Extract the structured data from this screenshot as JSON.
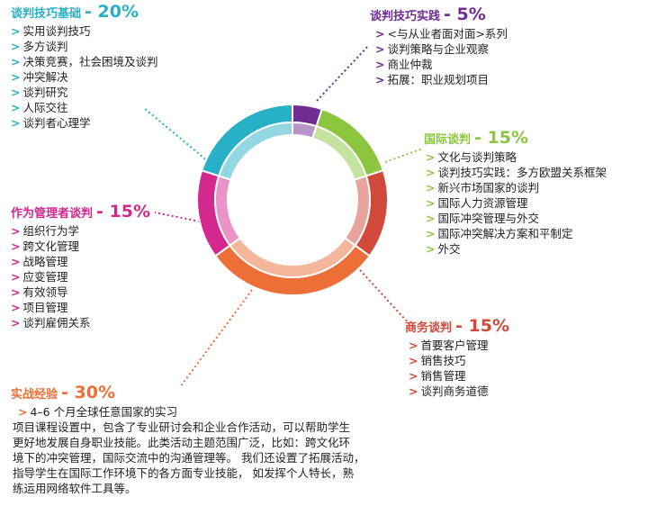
{
  "colors": {
    "purple": "#6f2c91",
    "green": "#8cc63f",
    "red": "#d1493a",
    "orange": "#ec6f37",
    "magenta": "#d3288d",
    "cyan": "#27b0c6"
  },
  "segments": [
    {
      "name": "谈判技巧实践",
      "value": 5,
      "color": "#6f2c91"
    },
    {
      "name": "国际谈判",
      "value": 15,
      "color": "#8cc63f"
    },
    {
      "name": "商务谈判",
      "value": 15,
      "color": "#d1493a"
    },
    {
      "name": "实战经验",
      "value": 30,
      "color": "#ec6f37"
    },
    {
      "name": "作为管理者谈判",
      "value": 15,
      "color": "#d3288d"
    },
    {
      "name": "谈判技巧基础",
      "value": 20,
      "color": "#27b0c6"
    }
  ],
  "basics": {
    "title": "谈判技巧基础",
    "pct": "- 20%",
    "items": [
      "实用谈判技巧",
      "多方谈判",
      "决策竞赛，社会困境及谈判",
      "冲突解决",
      "谈判研究",
      "人际交往",
      "谈判者心理学"
    ]
  },
  "practice": {
    "title": "谈判技巧实践",
    "pct": "- 5%",
    "items": [
      "<与从业者面对面>系列",
      "谈判策略与企业观察",
      "商业仲裁",
      "拓展：职业规划项目"
    ]
  },
  "international": {
    "title": "国际谈判",
    "pct": "- 15%",
    "items": [
      "文化与谈判策略",
      "谈判技巧实践：多方欧盟关系框架",
      "新兴市场国家的谈判",
      "国际人力资源管理",
      "国际冲突管理与外交",
      "国际冲突解决方案和平制定",
      "外交"
    ]
  },
  "manager": {
    "title": "作为管理者谈判",
    "pct": "- 15%",
    "items": [
      "组织行为学",
      "跨文化管理",
      "战略管理",
      "应变管理",
      "有效领导",
      "项目管理",
      "谈判雇佣关系"
    ]
  },
  "business": {
    "title": "商务谈判",
    "pct": "- 15%",
    "items": [
      "首要客户管理",
      "销售技巧",
      "销售管理",
      "谈判商务道德"
    ]
  },
  "field": {
    "title": "实战经验",
    "pct": "- 30%",
    "items": [
      "4–6 个月全球任意国家的实习"
    ]
  },
  "summary": {
    "lines": [
      "项目课程设置中，包含了专业研讨会和企业合作活动，可以帮助学生",
      "更好地发展自身职业技能。此类活动主题范围广泛，比如：跨文化环",
      "境下的冲突管理，国际交流中的沟通管理等。 我们还设置了拓展活动，",
      "指导学生在国际工作环境下的各方面专业技能， 如发挥个人特长，熟",
      "练运用网络软件工具等。"
    ]
  }
}
